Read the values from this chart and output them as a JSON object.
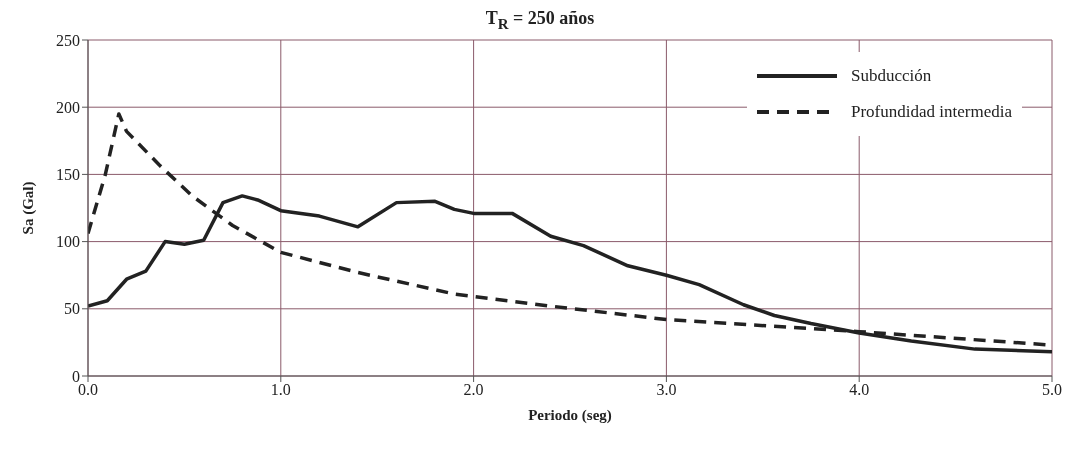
{
  "chart_data": {
    "type": "line",
    "title": "T$_{R}$ = 250 años",
    "xlabel": "Periodo (seg)",
    "ylabel": "Sa (Gal)",
    "xlim": [
      0,
      5
    ],
    "xticks": [
      {
        "value": 0,
        "label": "0.0"
      },
      {
        "value": 1,
        "label": "1.0"
      },
      {
        "value": 2,
        "label": "2.0"
      },
      {
        "value": 3,
        "label": "3.0"
      },
      {
        "value": 4,
        "label": "4.0"
      },
      {
        "value": 5,
        "label": "5.0"
      }
    ],
    "ylim": [
      0,
      250
    ],
    "yticks": [
      0,
      50,
      100,
      150,
      200,
      250
    ],
    "grid": true,
    "legend": "top right",
    "marker": "none",
    "series": [
      {
        "name": "Subducción",
        "color": "#222222",
        "line_style": "solid",
        "x": [
          0,
          0.1,
          0.2,
          0.3,
          0.4,
          0.5,
          0.6,
          0.7,
          0.8,
          0.88,
          1.0,
          1.2,
          1.4,
          1.6,
          1.8,
          1.9,
          2.0,
          2.2,
          2.4,
          2.57,
          2.8,
          3.0,
          3.17,
          3.4,
          3.56,
          3.75,
          4.0,
          4.27,
          4.6,
          5.0
        ],
        "values": [
          52,
          56,
          72,
          78,
          100,
          98,
          101,
          129,
          134,
          131,
          123,
          119,
          111,
          129,
          130,
          124,
          121,
          121,
          104,
          97,
          82,
          75,
          68,
          53,
          45,
          39,
          32,
          26,
          20,
          18
        ]
      },
      {
        "name": "Profundidad intermedia",
        "color": "#222222",
        "line_style": "dashed",
        "x": [
          0,
          0.09,
          0.16,
          0.2,
          0.37,
          0.54,
          0.75,
          1.0,
          1.4,
          1.9,
          2.4,
          3.0,
          4.0,
          5.0
        ],
        "values": [
          106,
          150,
          195,
          182,
          157,
          134,
          112,
          92,
          77,
          61,
          52,
          42,
          33,
          23
        ]
      }
    ]
  }
}
